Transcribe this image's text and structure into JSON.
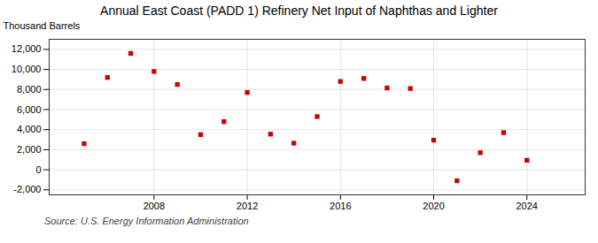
{
  "chart_data": {
    "type": "scatter",
    "title": "Annual East Coast (PADD 1) Refinery Net Input of Naphthas and Lighter",
    "ylabel": "Thousand Barrels",
    "source": "Source: U.S. Energy Information Administration",
    "x": [
      2005,
      2006,
      2007,
      2008,
      2009,
      2010,
      2011,
      2012,
      2013,
      2014,
      2015,
      2016,
      2017,
      2018,
      2019,
      2020,
      2021,
      2022,
      2023,
      2024
    ],
    "values": [
      2600,
      9200,
      11600,
      9800,
      8500,
      3500,
      4800,
      7700,
      3550,
      2650,
      5300,
      8800,
      9100,
      8150,
      8100,
      2950,
      -1100,
      1700,
      3700,
      950
    ],
    "color": "#cc0000",
    "marker": "square",
    "xlim": [
      2003.5,
      2026.5
    ],
    "xticks": [
      2008,
      2012,
      2016,
      2020,
      2024
    ],
    "ylim": [
      -2500,
      13000
    ],
    "yticks": [
      {
        "value": -2000,
        "label": "-2,000"
      },
      0,
      {
        "value": 2000,
        "label": "2,000"
      },
      {
        "value": 4000,
        "label": "4,000"
      },
      {
        "value": 6000,
        "label": "6,000"
      },
      {
        "value": 8000,
        "label": "8,000"
      },
      {
        "value": 10000,
        "label": "10,000"
      },
      {
        "value": 12000,
        "label": "12,000"
      }
    ],
    "grid": true
  }
}
